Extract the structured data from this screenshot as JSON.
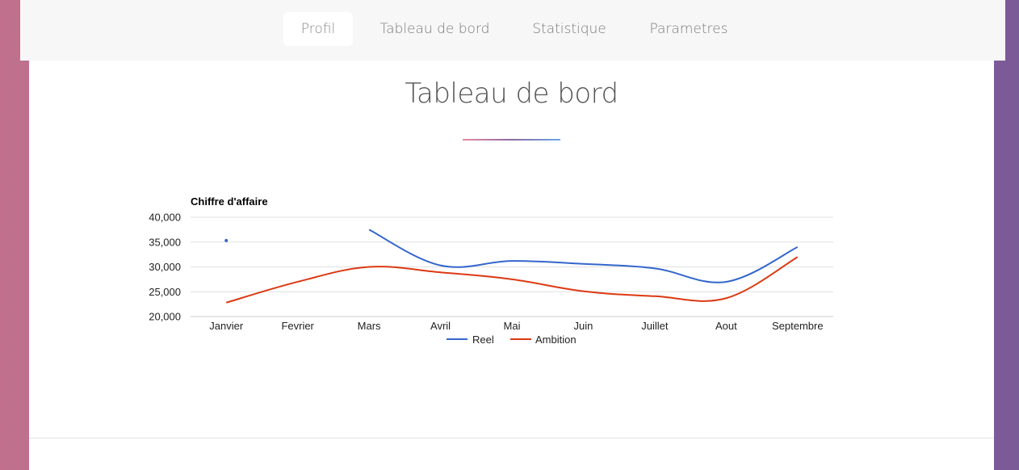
{
  "nav": {
    "tabs": [
      {
        "label": "Profil",
        "active": true
      },
      {
        "label": "Tableau de bord",
        "active": false
      },
      {
        "label": "Statistique",
        "active": false
      },
      {
        "label": "Parametres",
        "active": false
      }
    ]
  },
  "page": {
    "title": "Tableau de bord"
  },
  "colors": {
    "reel": "#3366cc",
    "ambition": "#dc3912",
    "grid": "#e0e0e0"
  },
  "chart_data": {
    "type": "line",
    "title": "Chiffre d'affaire",
    "xlabel": "",
    "ylabel": "",
    "categories": [
      "Janvier",
      "Fevrier",
      "Mars",
      "Avril",
      "Mai",
      "Juin",
      "Juillet",
      "Aout",
      "Septembre"
    ],
    "ylim": [
      20000,
      40000
    ],
    "yticks": [
      20000,
      25000,
      30000,
      35000,
      40000
    ],
    "ytick_labels": [
      "20,000",
      "25,000",
      "30,000",
      "35,000",
      "40,000"
    ],
    "grid": true,
    "legend": "bottom",
    "series": [
      {
        "name": "Reel",
        "color": "#3366cc",
        "values": [
          35300,
          null,
          37500,
          30300,
          31200,
          30600,
          29700,
          27000,
          34000
        ]
      },
      {
        "name": "Ambition",
        "color": "#dc3912",
        "values": [
          22800,
          27000,
          30000,
          28900,
          27500,
          25100,
          24100,
          23700,
          32000
        ]
      }
    ]
  }
}
